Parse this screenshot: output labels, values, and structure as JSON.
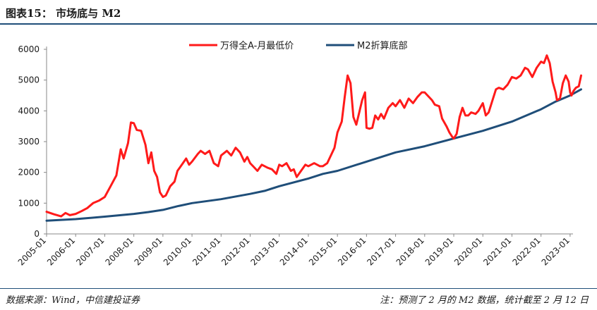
{
  "figure": {
    "label": "图表15：",
    "title": "市场底与 M2",
    "source": "数据来源：Wind，中信建投证券",
    "note": "注：预测了 2 月的 M2 数据，统计截至 2 月 12 日"
  },
  "chart_data": {
    "type": "line",
    "title": "",
    "xlabel": "",
    "ylabel": "",
    "ylim": [
      0,
      6000
    ],
    "yticks": [
      0,
      1000,
      2000,
      3000,
      4000,
      5000,
      6000
    ],
    "xticks": [
      "2005-01",
      "2006-01",
      "2007-01",
      "2008-01",
      "2009-01",
      "2010-01",
      "2011-01",
      "2012-01",
      "2013-01",
      "2014-01",
      "2015-01",
      "2016-01",
      "2017-01",
      "2018-01",
      "2019-01",
      "2020-01",
      "2021-01",
      "2022-01",
      "2023-01"
    ],
    "xlim": [
      2005.0,
      2023.1
    ],
    "grid": false,
    "legend_position": "top-center",
    "series": [
      {
        "name": "万得全A-月最低价",
        "color": "#ff1a1a",
        "points": [
          [
            2005.0,
            720
          ],
          [
            2005.25,
            640
          ],
          [
            2005.5,
            570
          ],
          [
            2005.65,
            680
          ],
          [
            2005.8,
            610
          ],
          [
            2006.0,
            650
          ],
          [
            2006.2,
            740
          ],
          [
            2006.4,
            840
          ],
          [
            2006.6,
            1000
          ],
          [
            2006.8,
            1080
          ],
          [
            2007.0,
            1200
          ],
          [
            2007.2,
            1550
          ],
          [
            2007.4,
            1900
          ],
          [
            2007.55,
            2750
          ],
          [
            2007.65,
            2450
          ],
          [
            2007.8,
            2950
          ],
          [
            2007.9,
            3620
          ],
          [
            2008.0,
            3600
          ],
          [
            2008.1,
            3380
          ],
          [
            2008.25,
            3350
          ],
          [
            2008.4,
            2900
          ],
          [
            2008.5,
            2300
          ],
          [
            2008.6,
            2650
          ],
          [
            2008.7,
            2050
          ],
          [
            2008.8,
            1850
          ],
          [
            2008.9,
            1350
          ],
          [
            2009.0,
            1200
          ],
          [
            2009.1,
            1250
          ],
          [
            2009.25,
            1550
          ],
          [
            2009.4,
            1700
          ],
          [
            2009.5,
            2050
          ],
          [
            2009.65,
            2250
          ],
          [
            2009.8,
            2450
          ],
          [
            2009.9,
            2250
          ],
          [
            2010.0,
            2350
          ],
          [
            2010.2,
            2600
          ],
          [
            2010.3,
            2700
          ],
          [
            2010.45,
            2600
          ],
          [
            2010.6,
            2700
          ],
          [
            2010.75,
            2300
          ],
          [
            2010.9,
            2200
          ],
          [
            2011.0,
            2550
          ],
          [
            2011.2,
            2700
          ],
          [
            2011.35,
            2550
          ],
          [
            2011.5,
            2800
          ],
          [
            2011.65,
            2650
          ],
          [
            2011.8,
            2350
          ],
          [
            2011.9,
            2500
          ],
          [
            2012.0,
            2300
          ],
          [
            2012.1,
            2200
          ],
          [
            2012.25,
            2050
          ],
          [
            2012.4,
            2250
          ],
          [
            2012.6,
            2150
          ],
          [
            2012.75,
            2100
          ],
          [
            2012.9,
            1950
          ],
          [
            2013.0,
            2250
          ],
          [
            2013.1,
            2200
          ],
          [
            2013.25,
            2300
          ],
          [
            2013.4,
            2050
          ],
          [
            2013.5,
            2100
          ],
          [
            2013.6,
            1850
          ],
          [
            2013.75,
            2050
          ],
          [
            2013.9,
            2250
          ],
          [
            2014.0,
            2200
          ],
          [
            2014.2,
            2300
          ],
          [
            2014.4,
            2200
          ],
          [
            2014.5,
            2200
          ],
          [
            2014.65,
            2300
          ],
          [
            2014.8,
            2600
          ],
          [
            2014.9,
            2800
          ],
          [
            2015.0,
            3300
          ],
          [
            2015.15,
            3650
          ],
          [
            2015.25,
            4450
          ],
          [
            2015.35,
            5150
          ],
          [
            2015.45,
            4900
          ],
          [
            2015.55,
            3800
          ],
          [
            2015.65,
            3550
          ],
          [
            2015.75,
            3950
          ],
          [
            2015.85,
            4350
          ],
          [
            2015.95,
            4600
          ],
          [
            2016.0,
            3450
          ],
          [
            2016.1,
            3420
          ],
          [
            2016.2,
            3450
          ],
          [
            2016.3,
            3850
          ],
          [
            2016.4,
            3720
          ],
          [
            2016.5,
            3900
          ],
          [
            2016.6,
            3750
          ],
          [
            2016.75,
            4100
          ],
          [
            2016.9,
            4250
          ],
          [
            2017.0,
            4150
          ],
          [
            2017.15,
            4350
          ],
          [
            2017.3,
            4100
          ],
          [
            2017.45,
            4400
          ],
          [
            2017.6,
            4250
          ],
          [
            2017.75,
            4450
          ],
          [
            2017.9,
            4600
          ],
          [
            2018.0,
            4600
          ],
          [
            2018.1,
            4500
          ],
          [
            2018.25,
            4350
          ],
          [
            2018.35,
            4200
          ],
          [
            2018.5,
            4150
          ],
          [
            2018.6,
            3750
          ],
          [
            2018.75,
            3500
          ],
          [
            2018.85,
            3300
          ],
          [
            2018.95,
            3150
          ],
          [
            2019.0,
            3100
          ],
          [
            2019.1,
            3250
          ],
          [
            2019.2,
            3800
          ],
          [
            2019.3,
            4100
          ],
          [
            2019.4,
            3850
          ],
          [
            2019.5,
            3850
          ],
          [
            2019.6,
            3950
          ],
          [
            2019.75,
            3900
          ],
          [
            2019.85,
            4000
          ],
          [
            2020.0,
            4250
          ],
          [
            2020.1,
            3850
          ],
          [
            2020.2,
            3950
          ],
          [
            2020.3,
            4250
          ],
          [
            2020.45,
            4700
          ],
          [
            2020.55,
            4750
          ],
          [
            2020.7,
            4700
          ],
          [
            2020.85,
            4850
          ],
          [
            2021.0,
            5100
          ],
          [
            2021.15,
            5050
          ],
          [
            2021.3,
            5150
          ],
          [
            2021.45,
            5400
          ],
          [
            2021.55,
            5350
          ],
          [
            2021.7,
            5100
          ],
          [
            2021.85,
            5400
          ],
          [
            2022.0,
            5600
          ],
          [
            2022.1,
            5550
          ],
          [
            2022.2,
            5800
          ],
          [
            2022.3,
            5550
          ],
          [
            2022.4,
            4950
          ],
          [
            2022.5,
            4600
          ],
          [
            2022.55,
            4350
          ],
          [
            2022.65,
            4400
          ],
          [
            2022.75,
            4900
          ],
          [
            2022.85,
            5150
          ],
          [
            2022.95,
            4950
          ],
          [
            2023.0,
            4600
          ],
          [
            2023.05,
            4500
          ],
          [
            2023.12,
            4650
          ],
          [
            2023.2,
            4750
          ],
          [
            2023.3,
            4800
          ],
          [
            2023.38,
            5150
          ]
        ]
      },
      {
        "name": "M2折算底部",
        "color": "#1f4e79",
        "points": [
          [
            2005.0,
            430
          ],
          [
            2006.0,
            480
          ],
          [
            2007.0,
            560
          ],
          [
            2008.0,
            650
          ],
          [
            2008.5,
            710
          ],
          [
            2009.0,
            780
          ],
          [
            2009.5,
            900
          ],
          [
            2010.0,
            1000
          ],
          [
            2011.0,
            1130
          ],
          [
            2012.0,
            1300
          ],
          [
            2012.5,
            1400
          ],
          [
            2013.0,
            1550
          ],
          [
            2014.0,
            1800
          ],
          [
            2014.5,
            1950
          ],
          [
            2015.0,
            2050
          ],
          [
            2016.0,
            2350
          ],
          [
            2017.0,
            2650
          ],
          [
            2018.0,
            2850
          ],
          [
            2019.0,
            3100
          ],
          [
            2020.0,
            3350
          ],
          [
            2021.0,
            3650
          ],
          [
            2022.0,
            4050
          ],
          [
            2022.5,
            4300
          ],
          [
            2023.0,
            4500
          ],
          [
            2023.38,
            4700
          ]
        ]
      }
    ]
  }
}
